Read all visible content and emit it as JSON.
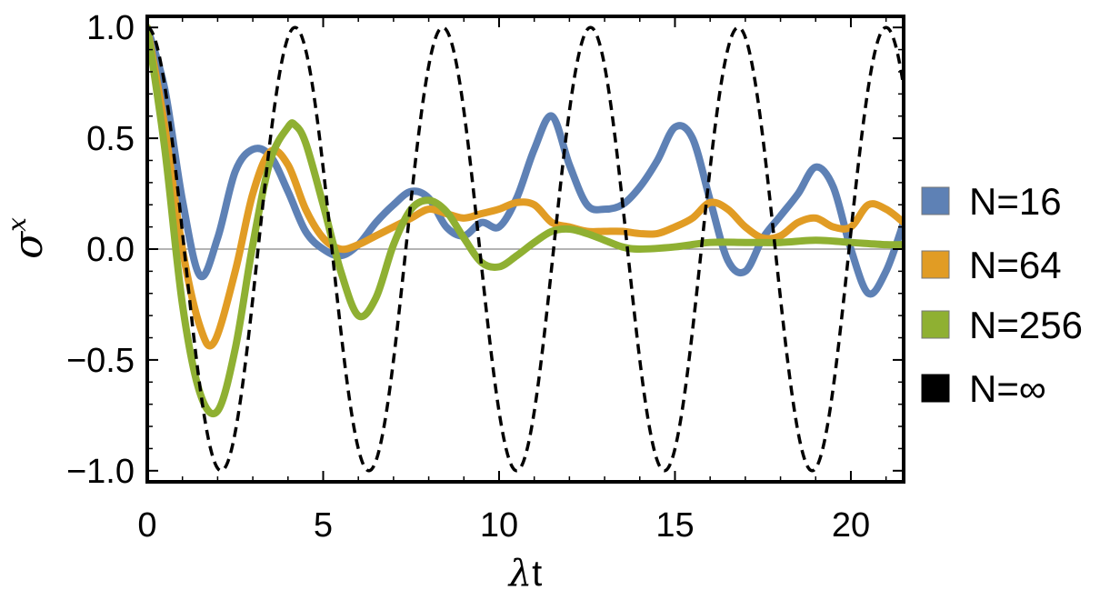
{
  "chart_data": {
    "type": "line",
    "title": "",
    "xlabel_symbol": "λ",
    "xlabel_text": "t",
    "ylabel_symbol": "σ",
    "ylabel_superscript": "x",
    "xlim": [
      0,
      21.5
    ],
    "ylim": [
      -1.05,
      1.05
    ],
    "xticks": [
      0,
      5,
      10,
      15,
      20
    ],
    "xtick_labels": [
      "0",
      "5",
      "10",
      "15",
      "20"
    ],
    "yticks": [
      -1.0,
      -0.5,
      0.0,
      0.5,
      1.0
    ],
    "ytick_labels": [
      "−1.0",
      "−0.5",
      "0.0",
      "0.5",
      "1.0"
    ],
    "zero_line": true,
    "grid": false,
    "legend_position": "right",
    "series": [
      {
        "name": "N=16",
        "color": "#5e81b5",
        "style": "solid",
        "x": [
          0,
          0.5,
          1.0,
          1.5,
          2.0,
          2.5,
          3.0,
          3.5,
          4.0,
          4.5,
          5.0,
          5.5,
          6.0,
          6.5,
          7.0,
          7.5,
          8.0,
          8.5,
          9.0,
          9.5,
          10.0,
          10.5,
          11.0,
          11.5,
          12.0,
          12.5,
          13.0,
          13.5,
          14.0,
          14.5,
          15.0,
          15.5,
          16.0,
          16.5,
          17.0,
          17.5,
          18.0,
          18.5,
          19.0,
          19.5,
          20.0,
          20.5,
          21.0,
          21.5
        ],
        "y": [
          1.0,
          0.72,
          0.22,
          -0.12,
          0.05,
          0.35,
          0.45,
          0.42,
          0.26,
          0.08,
          0.0,
          -0.03,
          0.02,
          0.12,
          0.2,
          0.26,
          0.23,
          0.1,
          0.06,
          0.12,
          0.1,
          0.23,
          0.45,
          0.6,
          0.38,
          0.2,
          0.18,
          0.2,
          0.28,
          0.4,
          0.55,
          0.5,
          0.22,
          -0.05,
          -0.1,
          0.05,
          0.15,
          0.25,
          0.37,
          0.28,
          0.0,
          -0.2,
          -0.1,
          0.12
        ]
      },
      {
        "name": "N=64",
        "color": "#e19c24",
        "style": "solid",
        "x": [
          0,
          0.5,
          1.0,
          1.5,
          1.9,
          2.5,
          3.0,
          3.5,
          4.0,
          4.5,
          5.0,
          5.5,
          6.0,
          6.5,
          7.0,
          7.5,
          8.0,
          8.5,
          9.0,
          9.5,
          10.0,
          10.5,
          11.0,
          11.5,
          12.0,
          12.5,
          13.0,
          13.5,
          14.0,
          14.5,
          15.0,
          15.5,
          16.0,
          16.5,
          17.0,
          17.5,
          18.0,
          18.5,
          19.0,
          19.5,
          20.0,
          20.5,
          21.0,
          21.5
        ],
        "y": [
          1.0,
          0.55,
          0.0,
          -0.35,
          -0.42,
          -0.1,
          0.25,
          0.44,
          0.38,
          0.18,
          0.05,
          0.0,
          0.02,
          0.06,
          0.1,
          0.14,
          0.18,
          0.16,
          0.14,
          0.16,
          0.18,
          0.21,
          0.2,
          0.12,
          0.1,
          0.08,
          0.08,
          0.08,
          0.07,
          0.07,
          0.1,
          0.14,
          0.21,
          0.18,
          0.1,
          0.05,
          0.06,
          0.12,
          0.14,
          0.1,
          0.1,
          0.2,
          0.18,
          0.12
        ]
      },
      {
        "name": "N=256",
        "color": "#8fb032",
        "style": "solid",
        "x": [
          0,
          0.5,
          1.0,
          1.5,
          2.0,
          2.5,
          3.0,
          3.5,
          4.0,
          4.2,
          4.5,
          5.0,
          5.5,
          6.0,
          6.5,
          7.0,
          7.5,
          8.0,
          8.5,
          9.0,
          9.5,
          10.0,
          10.5,
          11.0,
          11.5,
          12.0,
          12.5,
          13.0,
          13.5,
          14.0,
          15.0,
          16.0,
          17.0,
          18.0,
          19.0,
          20.0,
          21.0,
          21.5
        ],
        "y": [
          1.0,
          0.45,
          -0.25,
          -0.65,
          -0.73,
          -0.45,
          0.02,
          0.4,
          0.55,
          0.56,
          0.48,
          0.2,
          -0.1,
          -0.3,
          -0.22,
          0.02,
          0.18,
          0.22,
          0.17,
          0.05,
          -0.06,
          -0.08,
          -0.03,
          0.03,
          0.08,
          0.09,
          0.07,
          0.04,
          0.01,
          0.0,
          0.01,
          0.03,
          0.03,
          0.03,
          0.04,
          0.03,
          0.02,
          0.02
        ]
      },
      {
        "name": "N=∞",
        "color": "#000000",
        "style": "dashed",
        "function": "cos(2*pi*t/4.2)"
      }
    ]
  }
}
